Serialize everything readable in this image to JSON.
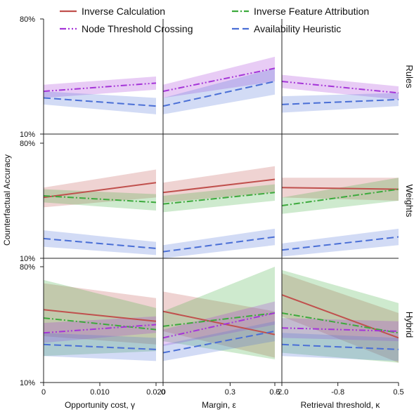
{
  "chart_data": {
    "type": "line",
    "ylabel": "Counterfactual Accuracy",
    "ylim": [
      10,
      80
    ],
    "ytick_labels": [
      "10%",
      "80%"
    ],
    "grid": false,
    "legend": {
      "placement": "top",
      "entries": [
        {
          "name": "Inverse Calculation",
          "color": "#c0504d",
          "dash": "solid"
        },
        {
          "name": "Inverse Feature Attribution",
          "color": "#3daa3d",
          "dash": "dashdot"
        },
        {
          "name": "Node Threshold Crossing",
          "color": "#a535d8",
          "dash": "dashdotdot"
        },
        {
          "name": "Availability Heuristic",
          "color": "#4a6fd6",
          "dash": "dash"
        }
      ]
    },
    "rows": [
      "Rules",
      "Weights",
      "Hybrid"
    ],
    "columns": [
      {
        "xlabel": "Opportunity cost, γ",
        "xlim": [
          0,
          0.02
        ],
        "ticks": [
          0,
          0.01,
          0.02
        ],
        "tick_labels": [
          "0",
          "0.010",
          "0.020"
        ]
      },
      {
        "xlabel": "Margin, ε",
        "xlim": [
          0,
          0.5
        ],
        "ticks": [
          0,
          0.3,
          0.5
        ],
        "tick_labels": [
          "0",
          "0.3",
          "0.5"
        ]
      },
      {
        "xlabel": "Retrieval threshold, κ",
        "xlim": [
          -2.0,
          0.5
        ],
        "ticks": [
          -2.0,
          -0.8,
          0.5
        ],
        "tick_labels": [
          "-2.0",
          "-0.8",
          "0.5"
        ]
      }
    ],
    "panels": [
      {
        "row": "Rules",
        "col": 0,
        "series": [
          {
            "name": "Node Threshold Crossing",
            "y": [
              36,
              41
            ],
            "lo": [
              32,
              37
            ],
            "hi": [
              40,
              45
            ]
          },
          {
            "name": "Availability Heuristic",
            "y": [
              32,
              27
            ],
            "lo": [
              28,
              22
            ],
            "hi": [
              36,
              32
            ]
          }
        ]
      },
      {
        "row": "Rules",
        "col": 1,
        "series": [
          {
            "name": "Node Threshold Crossing",
            "y": [
              36,
              50
            ],
            "lo": [
              32,
              42
            ],
            "hi": [
              40,
              57
            ]
          },
          {
            "name": "Availability Heuristic",
            "y": [
              27,
              42
            ],
            "lo": [
              22,
              34
            ],
            "hi": [
              32,
              50
            ]
          }
        ]
      },
      {
        "row": "Rules",
        "col": 2,
        "series": [
          {
            "name": "Node Threshold Crossing",
            "y": [
              42,
              35
            ],
            "lo": [
              38,
              31
            ],
            "hi": [
              46,
              39
            ]
          },
          {
            "name": "Availability Heuristic",
            "y": [
              28,
              31
            ],
            "lo": [
              23,
              27
            ],
            "hi": [
              33,
              35
            ]
          }
        ]
      },
      {
        "row": "Weights",
        "col": 0,
        "series": [
          {
            "name": "Inverse Calculation",
            "y": [
              47,
              56
            ],
            "lo": [
              41,
              47
            ],
            "hi": [
              53,
              64
            ]
          },
          {
            "name": "Inverse Feature Attribution",
            "y": [
              48,
              44
            ],
            "lo": [
              44,
              39
            ],
            "hi": [
              52,
              49
            ]
          },
          {
            "name": "Availability Heuristic",
            "y": [
              22,
              16
            ],
            "lo": [
              17,
              12
            ],
            "hi": [
              27,
              20
            ]
          }
        ]
      },
      {
        "row": "Weights",
        "col": 1,
        "series": [
          {
            "name": "Inverse Calculation",
            "y": [
              50,
              58
            ],
            "lo": [
              44,
              50
            ],
            "hi": [
              56,
              66
            ]
          },
          {
            "name": "Inverse Feature Attribution",
            "y": [
              43,
              50
            ],
            "lo": [
              38,
              45
            ],
            "hi": [
              48,
              55
            ]
          },
          {
            "name": "Availability Heuristic",
            "y": [
              14,
              23
            ],
            "lo": [
              10,
              18
            ],
            "hi": [
              18,
              28
            ]
          }
        ]
      },
      {
        "row": "Weights",
        "col": 2,
        "series": [
          {
            "name": "Inverse Calculation",
            "y": [
              53,
              52
            ],
            "lo": [
              47,
              45
            ],
            "hi": [
              59,
              59
            ]
          },
          {
            "name": "Inverse Feature Attribution",
            "y": [
              42,
              52
            ],
            "lo": [
              37,
              45
            ],
            "hi": [
              47,
              59
            ]
          },
          {
            "name": "Availability Heuristic",
            "y": [
              15,
              23
            ],
            "lo": [
              11,
              18
            ],
            "hi": [
              19,
              28
            ]
          }
        ]
      },
      {
        "row": "Hybrid",
        "col": 0,
        "series": [
          {
            "name": "Inverse Calculation",
            "y": [
              54,
              47
            ],
            "lo": [
              38,
              33
            ],
            "hi": [
              70,
              61
            ]
          },
          {
            "name": "Inverse Feature Attribution",
            "y": [
              49,
              42
            ],
            "lo": [
              26,
              29
            ],
            "hi": [
              72,
              55
            ]
          },
          {
            "name": "Node Threshold Crossing",
            "y": [
              40,
              45
            ],
            "lo": [
              34,
              40
            ],
            "hi": [
              46,
              50
            ]
          },
          {
            "name": "Availability Heuristic",
            "y": [
              33,
              30
            ],
            "lo": [
              26,
              23
            ],
            "hi": [
              40,
              37
            ]
          }
        ]
      },
      {
        "row": "Hybrid",
        "col": 1,
        "series": [
          {
            "name": "Inverse Calculation",
            "y": [
              53,
              39
            ],
            "lo": [
              41,
              25
            ],
            "hi": [
              65,
              53
            ]
          },
          {
            "name": "Inverse Feature Attribution",
            "y": [
              44,
              52
            ],
            "lo": [
              35,
              24
            ],
            "hi": [
              53,
              80
            ]
          },
          {
            "name": "Node Threshold Crossing",
            "y": [
              37,
              52
            ],
            "lo": [
              32,
              45
            ],
            "hi": [
              42,
              59
            ]
          },
          {
            "name": "Availability Heuristic",
            "y": [
              28,
              41
            ],
            "lo": [
              23,
              35
            ],
            "hi": [
              33,
              47
            ]
          }
        ]
      },
      {
        "row": "Hybrid",
        "col": 2,
        "series": [
          {
            "name": "Inverse Calculation",
            "y": [
              63,
              37
            ],
            "lo": [
              50,
              22
            ],
            "hi": [
              76,
              52
            ]
          },
          {
            "name": "Inverse Feature Attribution",
            "y": [
              52,
              40
            ],
            "lo": [
              28,
              22
            ],
            "hi": [
              78,
              58
            ]
          },
          {
            "name": "Node Threshold Crossing",
            "y": [
              43,
              41
            ],
            "lo": [
              37,
              35
            ],
            "hi": [
              49,
              47
            ]
          },
          {
            "name": "Availability Heuristic",
            "y": [
              33,
              30
            ],
            "lo": [
              26,
              23
            ],
            "hi": [
              40,
              37
            ]
          }
        ]
      }
    ]
  }
}
